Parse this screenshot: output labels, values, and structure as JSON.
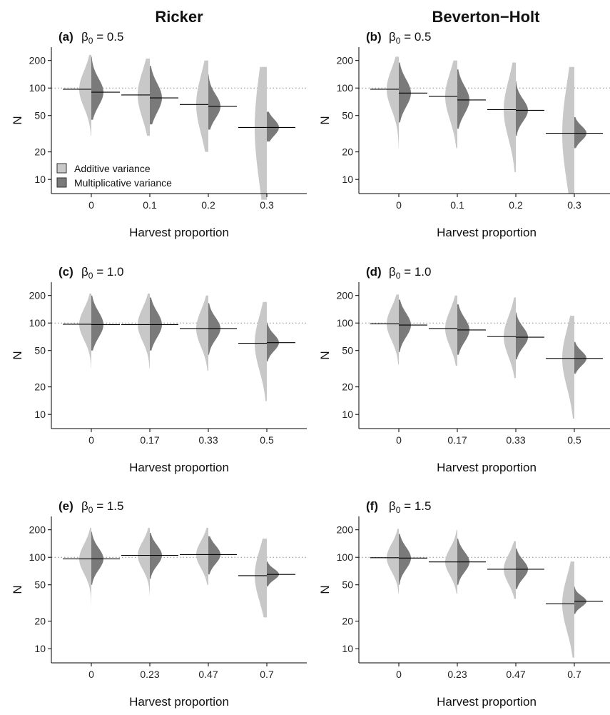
{
  "column_titles": [
    "Ricker",
    "Beverton−Holt"
  ],
  "colors": {
    "additive": "#c8c8c8",
    "multiplicative": "#7a7a7a",
    "mean_line": "#000000",
    "reference_line": "#8a8a8a",
    "axis": "#000000"
  },
  "legend": {
    "additive_label": "Additive variance",
    "multiplicative_label": "Multiplicative variance"
  },
  "chart_data": [
    {
      "panel": "(a)",
      "beta_symbol": "β",
      "beta_subscript": "0",
      "beta_value": "= 0.5",
      "model": "Ricker",
      "type": "violin (split)",
      "xlabel": "Harvest proportion",
      "ylabel": "N",
      "y_scale": "log",
      "ylim": [
        7,
        280
      ],
      "yticks": [
        10,
        20,
        50,
        100,
        200
      ],
      "reference_line": 100,
      "categories": [
        "0",
        "0.1",
        "0.2",
        "0.3"
      ],
      "additive": {
        "mean": [
          97,
          84,
          66,
          37
        ],
        "spread": [
          0.2,
          0.26,
          0.32,
          0.62
        ],
        "range": [
          [
            30,
            230
          ],
          [
            30,
            210
          ],
          [
            20,
            200
          ],
          [
            6,
            170
          ]
        ]
      },
      "multiplicative": {
        "mean": [
          90,
          78,
          63,
          37
        ],
        "spread": [
          0.15,
          0.16,
          0.13,
          0.09
        ],
        "range": [
          [
            45,
            220
          ],
          [
            40,
            175
          ],
          [
            35,
            140
          ],
          [
            26,
            55
          ]
        ]
      },
      "show_legend": true
    },
    {
      "panel": "(b)",
      "beta_symbol": "β",
      "beta_subscript": "0",
      "beta_value": "= 0.5",
      "model": "Beverton−Holt",
      "type": "violin (split)",
      "xlabel": "Harvest proportion",
      "ylabel": "N",
      "y_scale": "log",
      "ylim": [
        7,
        280
      ],
      "yticks": [
        10,
        20,
        50,
        100,
        200
      ],
      "reference_line": 100,
      "categories": [
        "0",
        "0.1",
        "0.2",
        "0.3"
      ],
      "additive": {
        "mean": [
          97,
          81,
          58,
          32
        ],
        "spread": [
          0.22,
          0.26,
          0.32,
          0.55
        ],
        "range": [
          [
            22,
            220
          ],
          [
            22,
            200
          ],
          [
            12,
            190
          ],
          [
            7,
            170
          ]
        ]
      },
      "multiplicative": {
        "mean": [
          88,
          74,
          57,
          32
        ],
        "spread": [
          0.15,
          0.15,
          0.12,
          0.08
        ],
        "range": [
          [
            42,
            190
          ],
          [
            36,
            160
          ],
          [
            30,
            120
          ],
          [
            22,
            48
          ]
        ]
      },
      "show_legend": false
    },
    {
      "panel": "(c)",
      "beta_symbol": "β",
      "beta_subscript": "0",
      "beta_value": "= 1.0",
      "model": "Ricker",
      "type": "violin (split)",
      "xlabel": "Harvest proportion",
      "ylabel": "N",
      "y_scale": "log",
      "ylim": [
        7,
        280
      ],
      "yticks": [
        10,
        20,
        50,
        100,
        200
      ],
      "reference_line": 100,
      "categories": [
        "0",
        "0.17",
        "0.33",
        "0.5"
      ],
      "additive": {
        "mean": [
          97,
          96,
          87,
          60
        ],
        "spread": [
          0.17,
          0.18,
          0.2,
          0.3
        ],
        "range": [
          [
            32,
            210
          ],
          [
            32,
            210
          ],
          [
            30,
            200
          ],
          [
            14,
            170
          ]
        ]
      },
      "multiplicative": {
        "mean": [
          96,
          96,
          87,
          61
        ],
        "spread": [
          0.14,
          0.14,
          0.12,
          0.09
        ],
        "range": [
          [
            50,
            200
          ],
          [
            50,
            190
          ],
          [
            45,
            165
          ],
          [
            38,
            100
          ]
        ]
      },
      "show_legend": false
    },
    {
      "panel": "(d)",
      "beta_symbol": "β",
      "beta_subscript": "0",
      "beta_value": "= 1.0",
      "model": "Beverton−Holt",
      "type": "violin (split)",
      "xlabel": "Harvest proportion",
      "ylabel": "N",
      "y_scale": "log",
      "ylim": [
        7,
        280
      ],
      "yticks": [
        10,
        20,
        50,
        100,
        200
      ],
      "reference_line": 100,
      "categories": [
        "0",
        "0.17",
        "0.33",
        "0.5"
      ],
      "additive": {
        "mean": [
          98,
          87,
          71,
          41
        ],
        "spread": [
          0.18,
          0.2,
          0.22,
          0.32
        ],
        "range": [
          [
            35,
            205
          ],
          [
            34,
            200
          ],
          [
            25,
            190
          ],
          [
            9,
            120
          ]
        ]
      },
      "multiplicative": {
        "mean": [
          95,
          84,
          70,
          41
        ],
        "spread": [
          0.13,
          0.13,
          0.11,
          0.08
        ],
        "range": [
          [
            48,
            180
          ],
          [
            45,
            160
          ],
          [
            40,
            130
          ],
          [
            28,
            62
          ]
        ]
      },
      "show_legend": false
    },
    {
      "panel": "(e)",
      "beta_symbol": "β",
      "beta_subscript": "0",
      "beta_value": "= 1.5",
      "model": "Ricker",
      "type": "violin (split)",
      "xlabel": "Harvest proportion",
      "ylabel": "N",
      "y_scale": "log",
      "ylim": [
        7,
        280
      ],
      "yticks": [
        10,
        20,
        50,
        100,
        200
      ],
      "reference_line": 100,
      "categories": [
        "0",
        "0.23",
        "0.47",
        "0.7"
      ],
      "additive": {
        "mean": [
          96,
          105,
          107,
          63
        ],
        "spread": [
          0.16,
          0.15,
          0.15,
          0.28
        ],
        "range": [
          [
            18,
            210
          ],
          [
            38,
            210
          ],
          [
            50,
            210
          ],
          [
            22,
            160
          ]
        ]
      },
      "multiplicative": {
        "mean": [
          96,
          105,
          107,
          65
        ],
        "spread": [
          0.12,
          0.11,
          0.1,
          0.06
        ],
        "range": [
          [
            50,
            190
          ],
          [
            58,
            185
          ],
          [
            65,
            170
          ],
          [
            48,
            90
          ]
        ]
      },
      "show_legend": false
    },
    {
      "panel": "(f)",
      "beta_symbol": "β",
      "beta_subscript": "0",
      "beta_value": "= 1.5",
      "model": "Beverton−Holt",
      "type": "violin (split)",
      "xlabel": "Harvest proportion",
      "ylabel": "N",
      "y_scale": "log",
      "ylim": [
        7,
        280
      ],
      "yticks": [
        10,
        20,
        50,
        100,
        200
      ],
      "reference_line": 100,
      "categories": [
        "0",
        "0.23",
        "0.47",
        "0.7"
      ],
      "additive": {
        "mean": [
          99,
          89,
          74,
          31
        ],
        "spread": [
          0.15,
          0.15,
          0.16,
          0.3
        ],
        "range": [
          [
            40,
            205
          ],
          [
            40,
            200
          ],
          [
            35,
            150
          ],
          [
            8,
            90
          ]
        ]
      },
      "multiplicative": {
        "mean": [
          98,
          89,
          74,
          33
        ],
        "spread": [
          0.12,
          0.11,
          0.1,
          0.06
        ],
        "range": [
          [
            50,
            180
          ],
          [
            50,
            160
          ],
          [
            45,
            125
          ],
          [
            24,
            48
          ]
        ]
      },
      "show_legend": false
    }
  ]
}
